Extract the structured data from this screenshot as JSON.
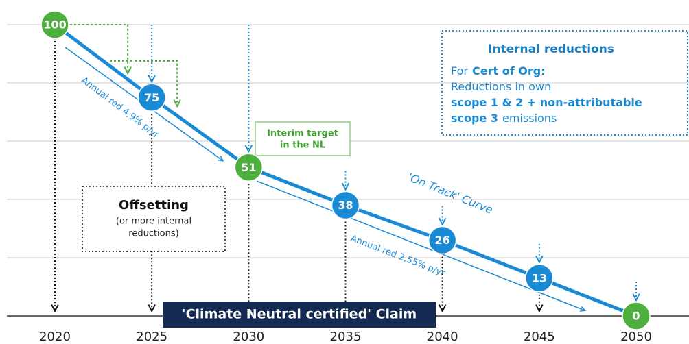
{
  "chart_data": {
    "type": "line",
    "x": [
      2020,
      2025,
      2030,
      2035,
      2040,
      2045,
      2050
    ],
    "values": [
      100,
      75,
      51,
      38,
      26,
      13,
      0
    ],
    "point_colors": [
      "#4caf3e",
      "#1a8ad4",
      "#4caf3e",
      "#1a8ad4",
      "#1a8ad4",
      "#1a8ad4",
      "#4caf3e"
    ],
    "color": "#1a8ad4",
    "xlim": [
      2020,
      2050
    ],
    "xticks": [
      2020,
      2025,
      2030,
      2035,
      2040,
      2045,
      2050
    ],
    "ylim": [
      0,
      100
    ],
    "yticks": [
      0,
      20,
      40,
      60,
      80,
      100
    ],
    "grid": true,
    "annotations": {
      "internal_reductions": {
        "title": "Internal reductions",
        "lines": [
          [
            {
              "text": "For"
            },
            {
              "text": "Cert of Org:",
              "bold": true
            }
          ],
          [
            {
              "text": "Reductions in own"
            }
          ],
          [
            {
              "text": "scope 1 & 2 + non-attributable",
              "bold": true
            }
          ],
          [
            {
              "text": "scope 3",
              "bold": true
            },
            {
              "text": "emissions"
            }
          ]
        ]
      },
      "interim_target": [
        "Interim target",
        "in the NL"
      ],
      "on_track": "'On Track' Curve",
      "annual_red_1": "Annual red 4,9% p/yr",
      "annual_red_2": "Annual red 2,55% p/yr",
      "offsetting": {
        "title": "Offsetting",
        "lines": [
          "(or more internal",
          "reductions)"
        ]
      },
      "claim": "'Climate Neutral certified' Claim"
    }
  }
}
